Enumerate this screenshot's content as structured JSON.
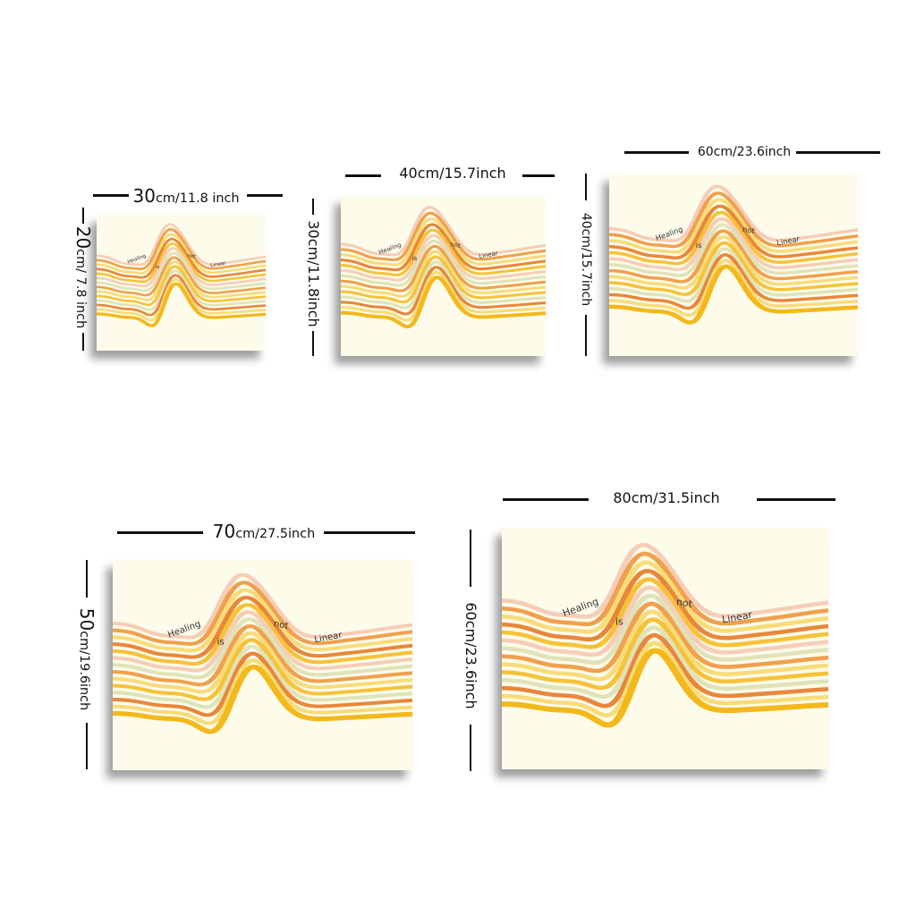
{
  "artwork": {
    "words": [
      "Healing",
      "is",
      "not",
      "Linear"
    ],
    "colors": {
      "background": "#fdfbea",
      "peach": "#f6cdb7",
      "orange": "#f0a04e",
      "dark_orange": "#e8873b",
      "yellow": "#f6c23a",
      "light_yellow": "#f8dc7a",
      "sage": "#dfe3b8",
      "gold": "#f3b81b"
    }
  },
  "sizes": [
    {
      "width_big": "30",
      "width_rest": "cm/11.8 inch",
      "height_big": "20",
      "height_rest": "cm/ 7.8 inch"
    },
    {
      "width_big": "40cm/15.7inch",
      "width_rest": "",
      "height_big": "30cm/11.8inch",
      "height_rest": ""
    },
    {
      "width_big": "60cm/23.6inch",
      "width_rest": "",
      "height_big": "40cm/15.7inch",
      "height_rest": ""
    },
    {
      "width_big": "70",
      "width_rest": "cm/27.5inch",
      "height_big": "50",
      "height_rest": "cm/19.6inch"
    },
    {
      "width_big": "80cm/31.5inch",
      "width_rest": "",
      "height_big": "60cm/23.6inch",
      "height_rest": ""
    }
  ]
}
